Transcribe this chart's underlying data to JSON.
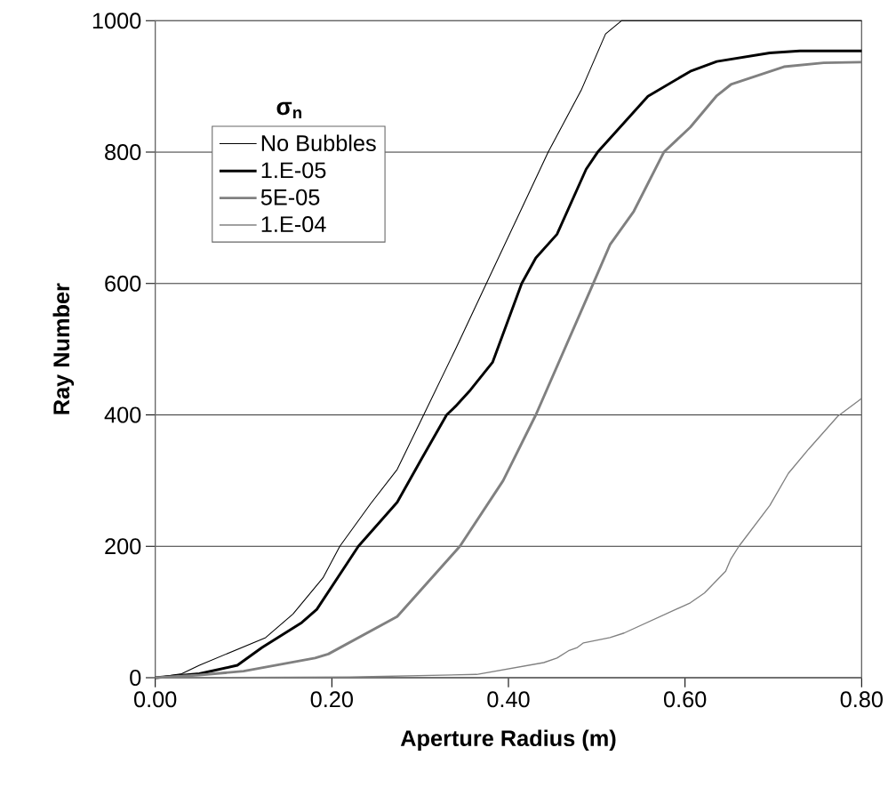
{
  "chart_data": {
    "type": "line",
    "xlabel": "Aperture Radius (m)",
    "ylabel": "Ray Number",
    "legend_title": "σ$_{n}$",
    "xlim": [
      0,
      0.8
    ],
    "ylim": [
      0,
      1000
    ],
    "xticks": [
      {
        "value": 0,
        "label": "0.00"
      },
      {
        "value": 0.2,
        "label": "0.20"
      },
      {
        "value": 0.4,
        "label": "0.40"
      },
      {
        "value": 0.6,
        "label": "0.60"
      },
      {
        "value": 0.8,
        "label": "0.80"
      }
    ],
    "yticks": [
      0,
      200,
      400,
      600,
      800,
      1000
    ],
    "grid": "y",
    "legend": "top left",
    "marker": "none",
    "line_style": "solid",
    "series": [
      {
        "name": "No Bubbles",
        "color": "#000000",
        "x": [
          0,
          0.03,
          0.05,
          0.125,
          0.156,
          0.19,
          0.209,
          0.244,
          0.274,
          0.304,
          0.34,
          0.375,
          0.41,
          0.445,
          0.483,
          0.51,
          0.528,
          0.8
        ],
        "values": [
          0,
          6,
          19,
          61,
          97,
          152,
          200,
          265,
          317,
          400,
          500,
          600,
          700,
          800,
          896,
          980,
          1000,
          1000
        ]
      },
      {
        "name": "1.E-05",
        "color": "#000000",
        "x": [
          0,
          0.05,
          0.093,
          0.121,
          0.166,
          0.183,
          0.23,
          0.274,
          0.302,
          0.33,
          0.34,
          0.357,
          0.382,
          0.415,
          0.431,
          0.455,
          0.488,
          0.501,
          0.558,
          0.606,
          0.636,
          0.696,
          0.73,
          0.8
        ],
        "values": [
          0,
          6,
          19,
          46,
          84,
          104,
          200,
          267,
          334,
          400,
          413,
          438,
          480,
          600,
          639,
          675,
          774,
          800,
          885,
          923,
          938,
          951,
          954,
          954
        ]
      },
      {
        "name": "5E-05",
        "color": "#808080",
        "x": [
          0,
          0.05,
          0.1,
          0.181,
          0.196,
          0.274,
          0.345,
          0.394,
          0.431,
          0.496,
          0.515,
          0.542,
          0.576,
          0.606,
          0.636,
          0.652,
          0.712,
          0.757,
          0.8
        ],
        "values": [
          0,
          4,
          10,
          30,
          36,
          93,
          200,
          300,
          400,
          600,
          659,
          710,
          800,
          838,
          886,
          903,
          930,
          936,
          937
        ]
      },
      {
        "name": "1.E-04",
        "color": "#808080",
        "x": [
          0,
          0.22,
          0.364,
          0.44,
          0.455,
          0.468,
          0.478,
          0.485,
          0.515,
          0.531,
          0.606,
          0.622,
          0.646,
          0.652,
          0.661,
          0.696,
          0.717,
          0.74,
          0.773,
          0.8
        ],
        "values": [
          0,
          1,
          5,
          23,
          30,
          41,
          46,
          53,
          61,
          68,
          114,
          129,
          162,
          181,
          200,
          262,
          311,
          348,
          398,
          425
        ]
      }
    ]
  }
}
